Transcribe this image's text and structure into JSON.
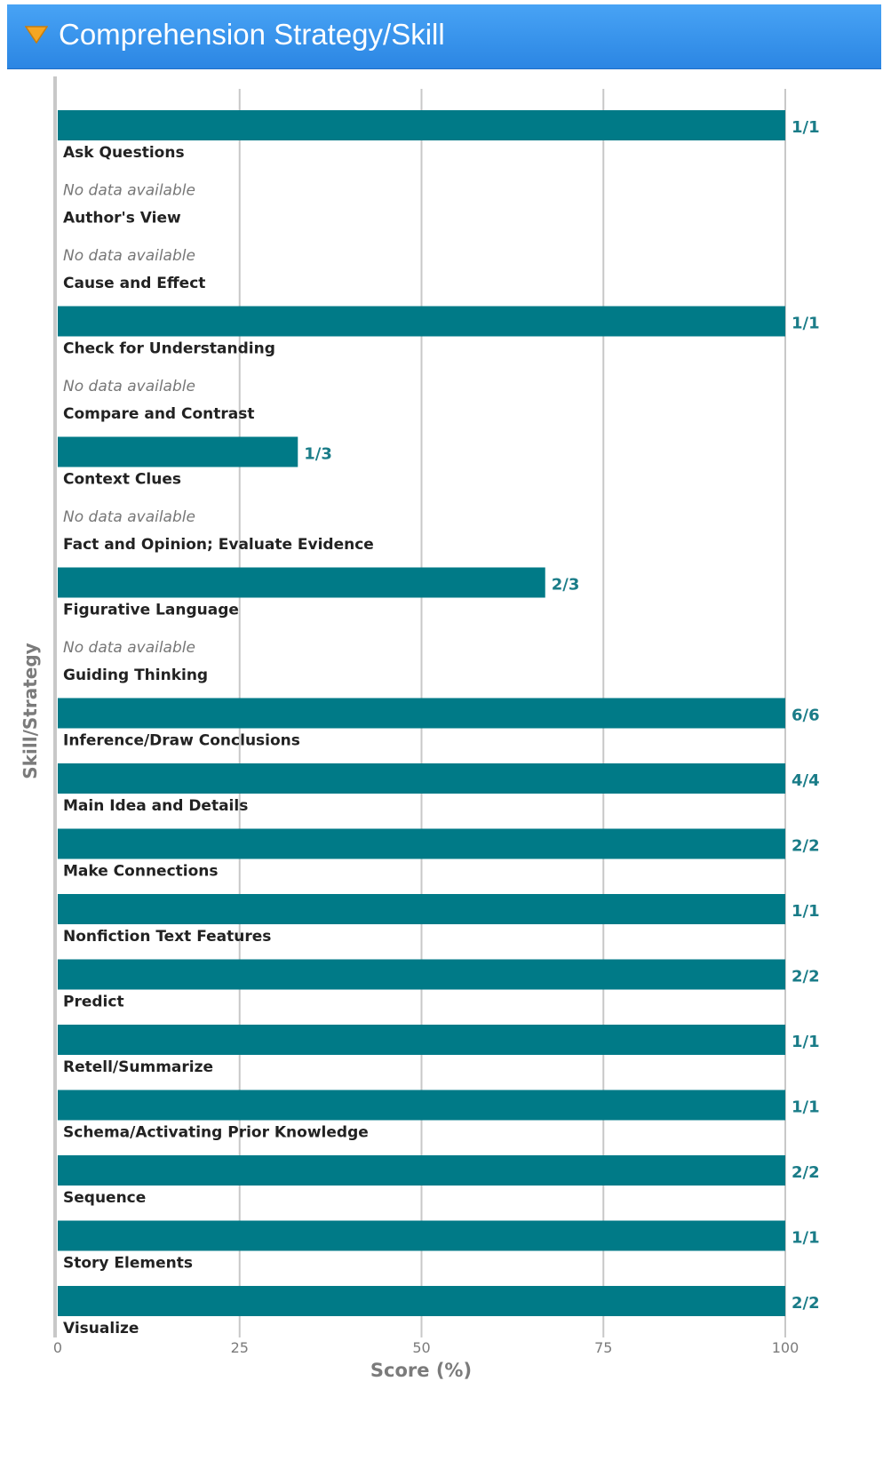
{
  "header": {
    "title": "Comprehension Strategy/Skill",
    "toggle_icon": "triangle-down-icon",
    "toggle_color": "#f5a623"
  },
  "chart_data": {
    "type": "bar",
    "orientation": "horizontal",
    "title": "",
    "xlabel": "Score (%)",
    "ylabel": "Skill/Strategy",
    "xlim": [
      0,
      100
    ],
    "xticks": [
      0,
      25,
      50,
      75,
      100
    ],
    "grid": true,
    "bar_color": "#007a87",
    "label_color": "#1a7c88",
    "no_data_text": "No data available",
    "categories": [
      "Ask Questions",
      "Author's View",
      "Cause and Effect",
      "Check for Understanding",
      "Compare and Contrast",
      "Context Clues",
      "Fact and Opinion; Evaluate Evidence",
      "Figurative Language",
      "Guiding Thinking",
      "Inference/Draw Conclusions",
      "Main Idea and Details",
      "Make Connections",
      "Nonfiction Text Features",
      "Predict",
      "Retell/Summarize",
      "Schema/Activating Prior Knowledge",
      "Sequence",
      "Story Elements",
      "Visualize"
    ],
    "values": [
      100,
      null,
      null,
      100,
      null,
      33,
      null,
      67,
      null,
      100,
      100,
      100,
      100,
      100,
      100,
      100,
      100,
      100,
      100
    ],
    "labels": [
      "1/1",
      null,
      null,
      "1/1",
      null,
      "1/3",
      null,
      "2/3",
      null,
      "6/6",
      "4/4",
      "2/2",
      "1/1",
      "2/2",
      "1/1",
      "1/1",
      "2/2",
      "1/1",
      "2/2"
    ]
  }
}
